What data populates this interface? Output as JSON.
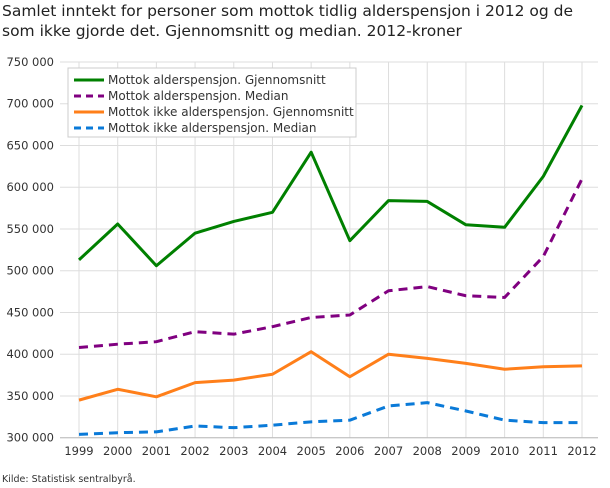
{
  "chart_data": {
    "type": "line",
    "title": "Samlet inntekt for personer som mottok tidlig alderspensjon i 2012 og de som ikke gjorde det. Gjennomsnitt og median. 2012-kroner",
    "source": "Kilde: Statistisk sentralbyrå.",
    "xlabel": "",
    "ylabel": "",
    "x": [
      "1999",
      "2000",
      "2001",
      "2002",
      "2003",
      "2004",
      "2005",
      "2006",
      "2007",
      "2008",
      "2009",
      "2010",
      "2011",
      "2012"
    ],
    "ylim": [
      300000,
      750000
    ],
    "yticks": [
      300000,
      350000,
      400000,
      450000,
      500000,
      550000,
      600000,
      650000,
      700000,
      750000
    ],
    "ytick_labels": [
      "300 000",
      "350 000",
      "400 000",
      "450 000",
      "500 000",
      "550 000",
      "600 000",
      "650 000",
      "700 000",
      "750 000"
    ],
    "grid": true,
    "legend_position": "top-left",
    "series": [
      {
        "name": "Mottok alderspensjon. Gjennomsnitt",
        "color": "#008000",
        "dash": false,
        "values": [
          513000,
          556000,
          506000,
          545000,
          559000,
          570000,
          642000,
          536000,
          584000,
          583000,
          555000,
          552000,
          613000,
          698000
        ]
      },
      {
        "name": "Mottok alderspensjon. Median",
        "color": "#800080",
        "dash": true,
        "values": [
          408000,
          412000,
          415000,
          427000,
          424000,
          433000,
          444000,
          447000,
          476000,
          481000,
          470000,
          468000,
          517000,
          610000
        ]
      },
      {
        "name": "Mottok ikke alderspensjon. Gjennomsnitt",
        "color": "#ff7f1a",
        "dash": false,
        "values": [
          345000,
          358000,
          349000,
          366000,
          369000,
          376000,
          403000,
          373000,
          400000,
          395000,
          389000,
          382000,
          385000,
          386000
        ]
      },
      {
        "name": "Mottok ikke alderspensjon. Median",
        "color": "#0a7ad8",
        "dash": true,
        "values": [
          304000,
          306000,
          307000,
          314000,
          312000,
          315000,
          319000,
          321000,
          338000,
          342000,
          332000,
          321000,
          318000,
          318000
        ]
      }
    ]
  }
}
